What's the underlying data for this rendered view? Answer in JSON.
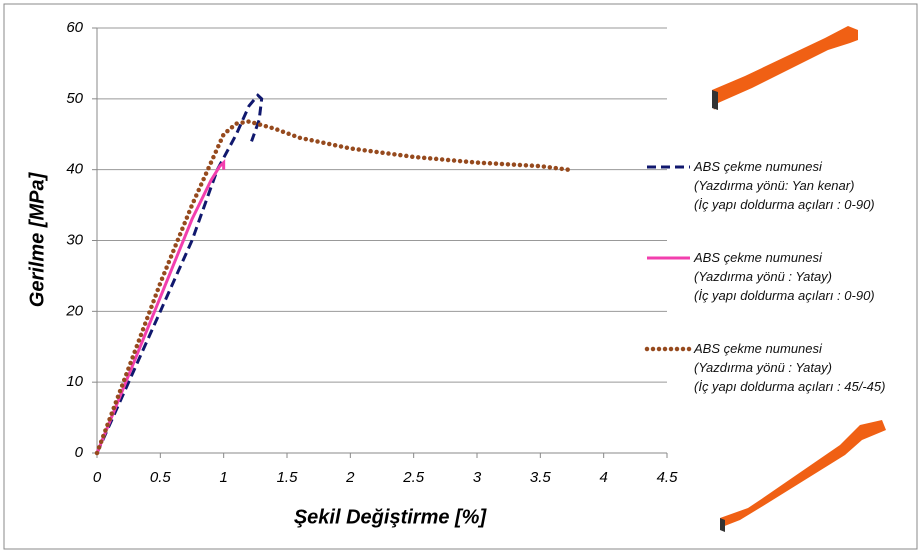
{
  "chart_data": {
    "type": "line",
    "xlabel": "Şekil Değiştirme [%]",
    "ylabel": "Gerilme [MPa]",
    "xlim": [
      0,
      4.5
    ],
    "xticks": [
      0,
      0.5,
      1,
      1.5,
      2,
      2.5,
      3,
      3.5,
      4,
      4.5
    ],
    "ylim": [
      0,
      60
    ],
    "yticks": [
      0,
      10,
      20,
      30,
      40,
      50,
      60
    ],
    "grid": true,
    "series": [
      {
        "name": "ABS çekme numunesi\n(Yazdırma yönü: Yan kenar)\n(İç yapı doldurma açıları : 0-90)",
        "color": "#10186e",
        "style": "dashed",
        "x": [
          0,
          0.25,
          0.5,
          0.75,
          0.95,
          1.1,
          1.2,
          1.27,
          1.3,
          1.28,
          1.22
        ],
        "values": [
          0,
          10,
          20,
          30,
          40,
          45,
          49,
          50.5,
          50,
          47,
          44
        ]
      },
      {
        "name": "ABS çekme numunesi\n(Yazdırma yönü : Yatay)\n(İç yapı doldurma açıları : 0-90)",
        "color": "#f23fae",
        "style": "solid",
        "x": [
          0,
          0.25,
          0.5,
          0.75,
          0.9,
          0.97,
          1.0,
          1.0
        ],
        "values": [
          0,
          11,
          22,
          33,
          38.5,
          40.5,
          41,
          40
        ]
      },
      {
        "name": "ABS çekme numunesi\n(Yazdırma yönü : Yatay)\n(İç yapı doldurma açıları : 45/-45)",
        "color": "#964a1e",
        "style": "dotted",
        "x": [
          0,
          0.25,
          0.5,
          0.75,
          0.9,
          1.0,
          1.1,
          1.2,
          1.4,
          1.6,
          2,
          2.5,
          3,
          3.5,
          3.72
        ],
        "values": [
          0,
          12,
          24,
          35,
          41,
          45,
          46.5,
          46.8,
          45.8,
          44.5,
          43,
          41.8,
          41,
          40.5,
          40
        ]
      }
    ]
  }
}
